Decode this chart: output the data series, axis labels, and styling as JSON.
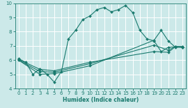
{
  "xlabel": "Humidex (Indice chaleur)",
  "xlim": [
    -0.5,
    23.5
  ],
  "ylim": [
    4,
    10
  ],
  "yticks": [
    4,
    5,
    6,
    7,
    8,
    9,
    10
  ],
  "xticks": [
    0,
    1,
    2,
    3,
    4,
    5,
    6,
    7,
    8,
    9,
    10,
    11,
    12,
    13,
    14,
    15,
    16,
    17,
    18,
    19,
    20,
    21,
    22,
    23
  ],
  "bg_color": "#cce9e9",
  "line_color": "#1a7a6e",
  "grid_color": "#ffffff",
  "lines": [
    {
      "x": [
        0,
        1,
        2,
        3,
        4,
        5,
        6,
        7,
        8,
        9,
        10,
        11,
        12,
        13,
        14,
        15,
        16,
        17,
        18,
        19,
        20,
        21,
        22,
        23
      ],
      "y": [
        6.1,
        5.85,
        5.0,
        5.4,
        5.0,
        4.45,
        5.2,
        7.5,
        8.1,
        8.85,
        9.1,
        9.55,
        9.7,
        9.4,
        9.55,
        9.85,
        9.35,
        8.1,
        7.5,
        7.35,
        6.6,
        6.9,
        6.95,
        6.95
      ]
    },
    {
      "x": [
        0,
        3,
        5,
        10,
        19,
        21,
        22,
        23
      ],
      "y": [
        6.05,
        5.35,
        5.25,
        5.85,
        6.6,
        6.55,
        6.95,
        6.95
      ]
    },
    {
      "x": [
        0,
        3,
        5,
        10,
        19,
        21,
        22,
        23
      ],
      "y": [
        6.0,
        5.2,
        5.15,
        5.75,
        7.05,
        6.7,
        6.95,
        6.9
      ]
    },
    {
      "x": [
        0,
        3,
        5,
        10,
        19,
        20,
        21,
        22,
        23
      ],
      "y": [
        6.0,
        5.0,
        5.05,
        5.6,
        7.4,
        8.1,
        7.35,
        6.9,
        6.9
      ]
    }
  ]
}
